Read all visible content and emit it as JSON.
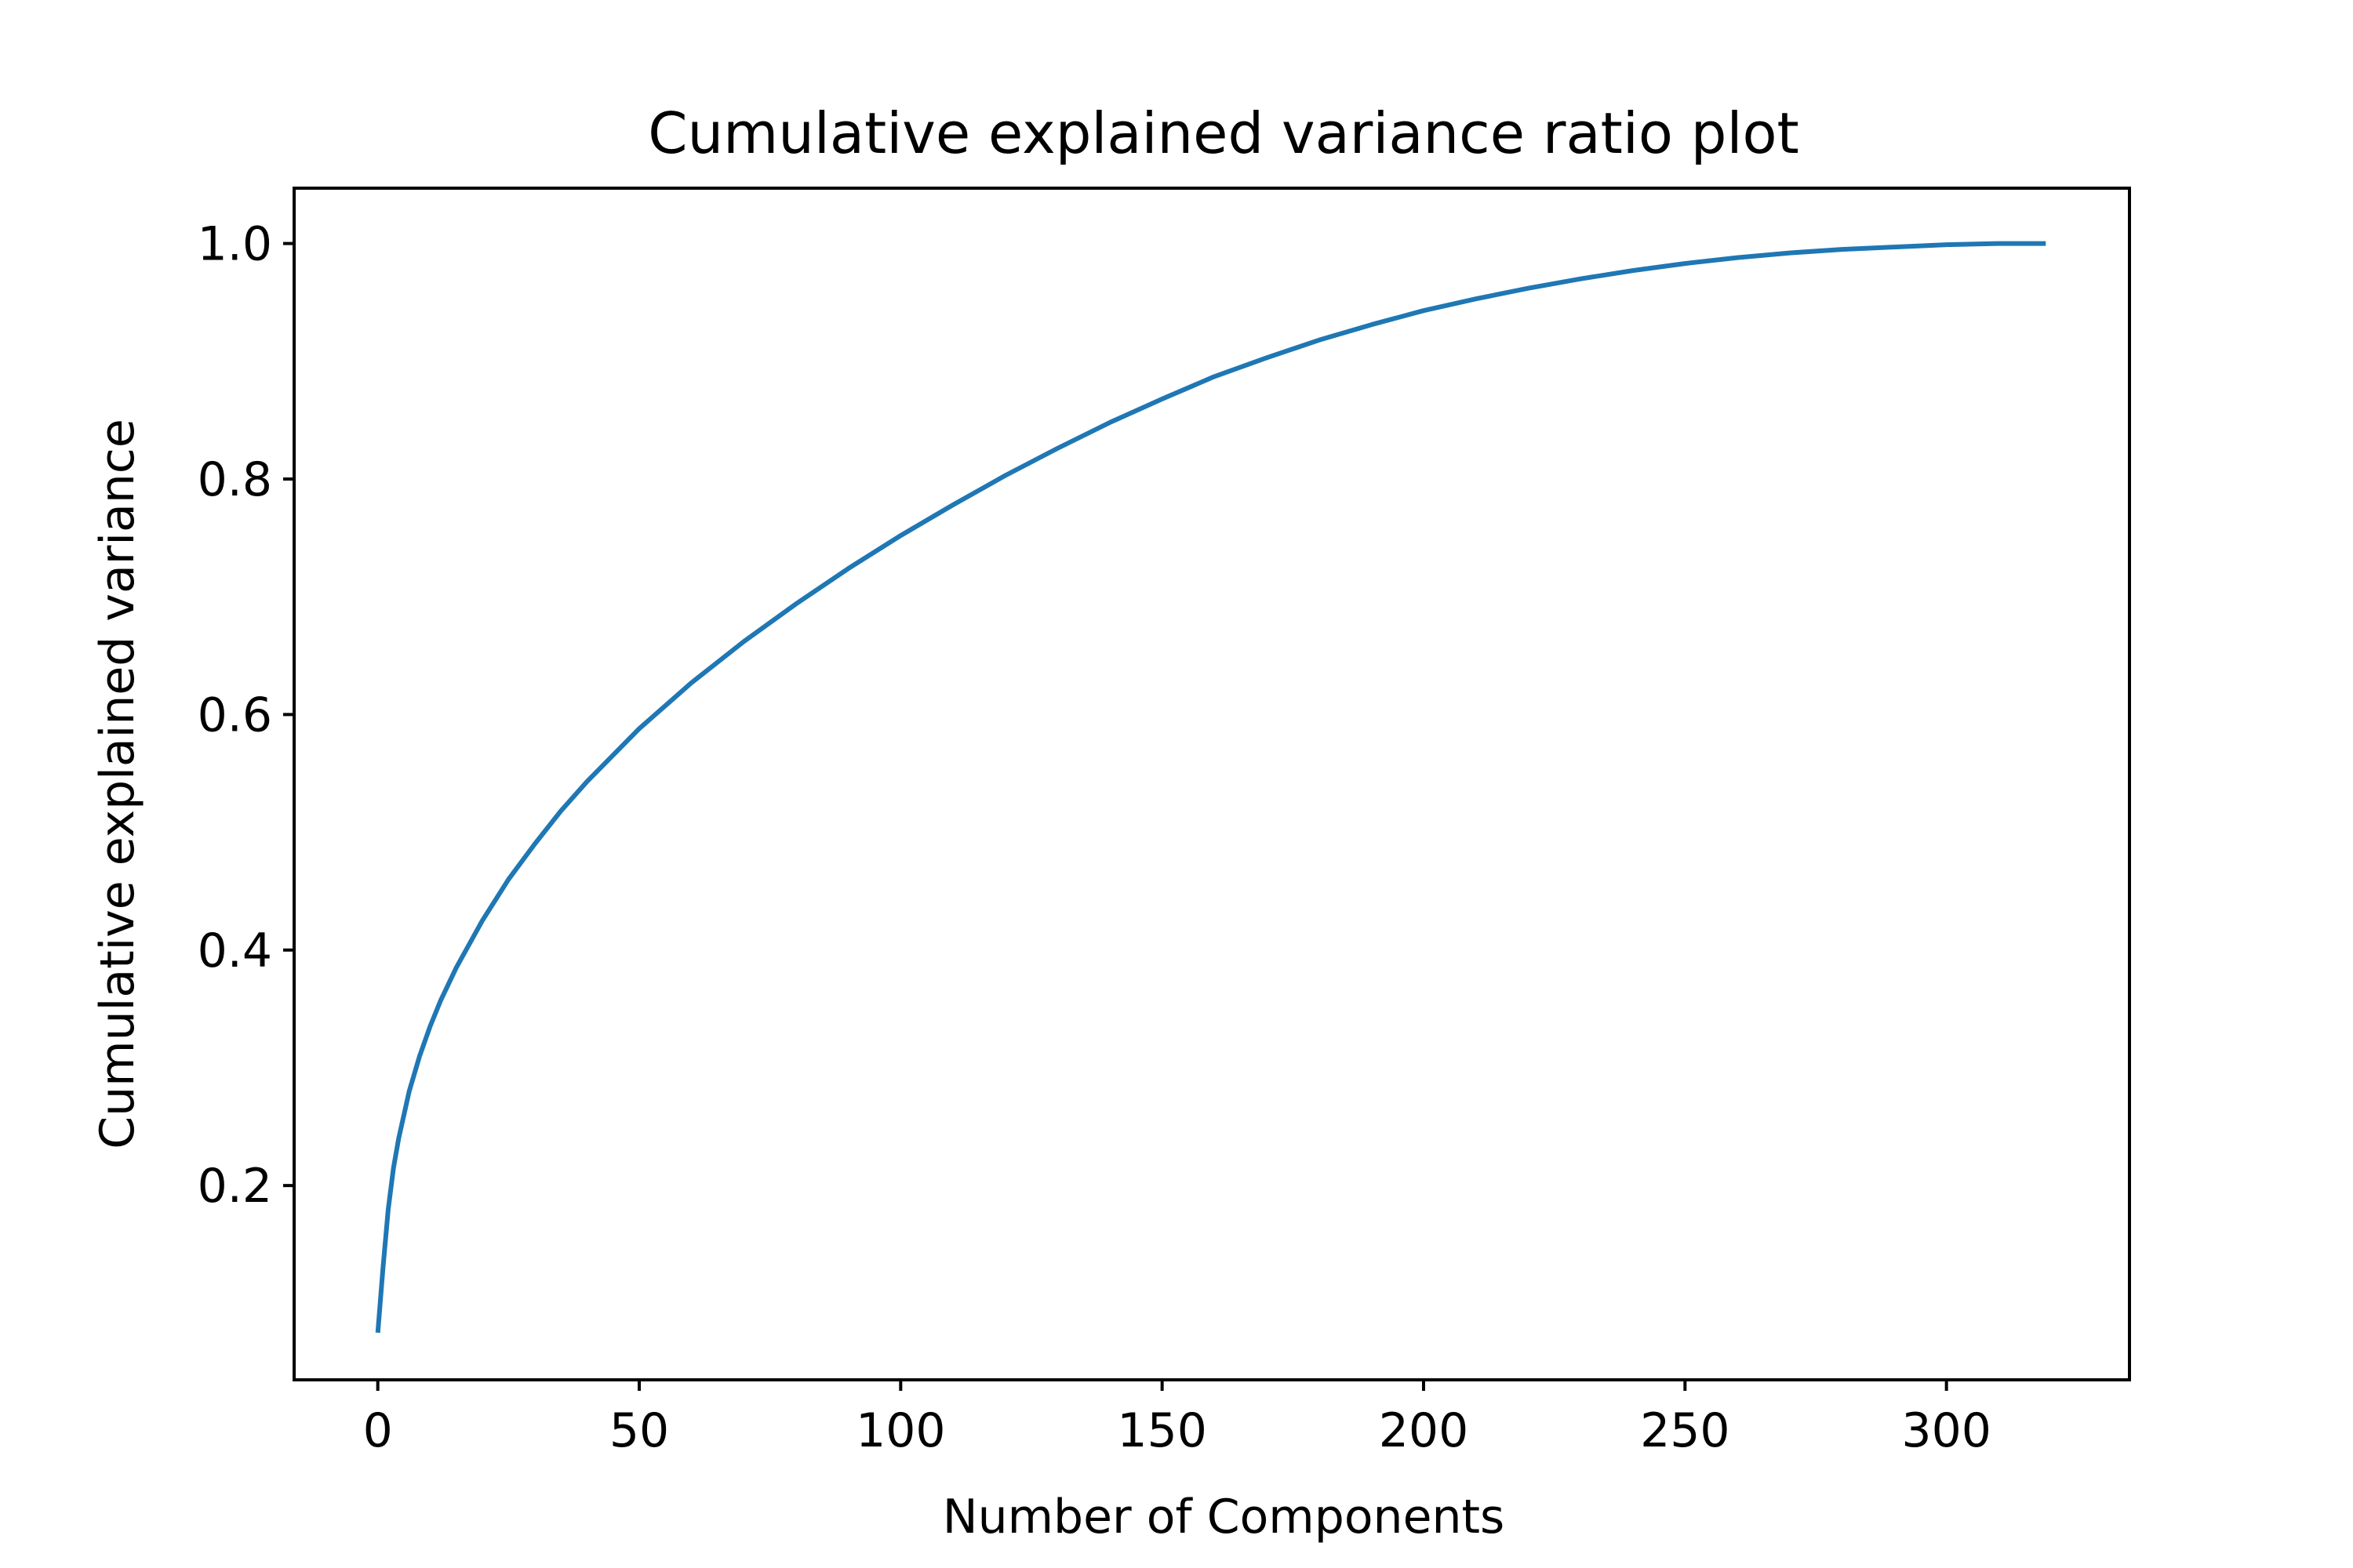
{
  "chart_data": {
    "type": "line",
    "title": "Cumulative explained variance ratio plot",
    "xlabel": "Number of Components",
    "ylabel": "Cumulative explained variance",
    "xlim": [
      -16,
      335
    ],
    "ylim": [
      0.035,
      1.047
    ],
    "grid": false,
    "legend": "none",
    "x_ticks": [
      0,
      50,
      100,
      150,
      200,
      250,
      300
    ],
    "x_tick_labels": [
      "0",
      "50",
      "100",
      "150",
      "200",
      "250",
      "300"
    ],
    "y_ticks": [
      0.2,
      0.4,
      0.6,
      0.8,
      1.0
    ],
    "y_tick_labels": [
      "0.2",
      "0.4",
      "0.6",
      "0.8",
      "1.0"
    ],
    "series": [
      {
        "color": "#1f77b4",
        "x": [
          0,
          1,
          2,
          3,
          4,
          5,
          6,
          8,
          10,
          12,
          15,
          20,
          25,
          30,
          35,
          40,
          50,
          60,
          70,
          80,
          90,
          100,
          110,
          120,
          130,
          140,
          150,
          160,
          170,
          180,
          190,
          200,
          210,
          220,
          230,
          240,
          250,
          260,
          270,
          280,
          290,
          300,
          310,
          319
        ],
        "y": [
          0.075,
          0.13,
          0.18,
          0.215,
          0.24,
          0.26,
          0.28,
          0.31,
          0.335,
          0.357,
          0.385,
          0.425,
          0.46,
          0.49,
          0.518,
          0.543,
          0.588,
          0.627,
          0.662,
          0.694,
          0.724,
          0.752,
          0.778,
          0.803,
          0.826,
          0.848,
          0.868,
          0.887,
          0.903,
          0.918,
          0.931,
          0.943,
          0.953,
          0.962,
          0.97,
          0.977,
          0.983,
          0.988,
          0.992,
          0.995,
          0.997,
          0.999,
          1.0,
          1.0
        ]
      }
    ]
  }
}
